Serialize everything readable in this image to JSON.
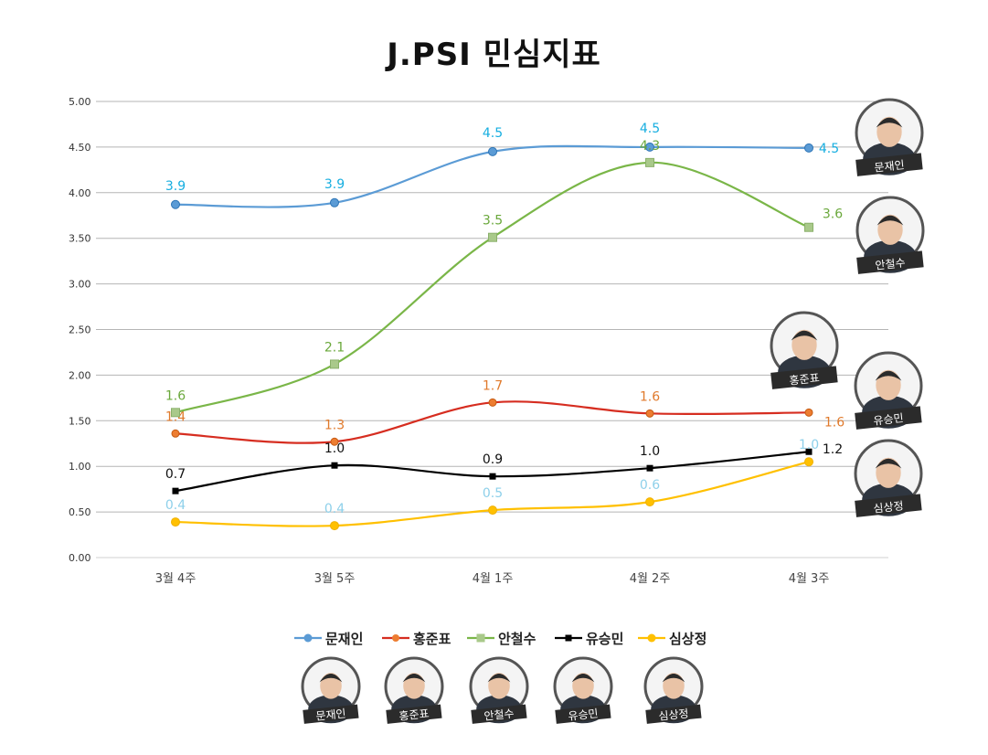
{
  "chart_data": {
    "type": "line",
    "title": "J.PSI 민심지표",
    "categories": [
      "3월 4주",
      "3월 5주",
      "4월 1주",
      "4월 2주",
      "4월 3주"
    ],
    "ylim": [
      0,
      5
    ],
    "yticks": [
      "0.00",
      "0.50",
      "1.00",
      "1.50",
      "2.00",
      "2.50",
      "3.00",
      "3.50",
      "4.00",
      "4.50",
      "5.00"
    ],
    "grid": true,
    "legend": "bottom",
    "series": [
      {
        "name": "문재인",
        "color": "#5b9bd5",
        "marker": "circle",
        "label_color": "#16aee0",
        "values": [
          3.87,
          3.89,
          4.45,
          4.5,
          4.49
        ],
        "labels": [
          "3.9",
          "3.9",
          "4.5",
          "4.5",
          "4.5"
        ]
      },
      {
        "name": "홍준표",
        "color": "#d62d20",
        "marker": "circle-orange",
        "label_color": "#e07a2c",
        "values": [
          1.36,
          1.27,
          1.7,
          1.58,
          1.59
        ],
        "labels": [
          "1.4",
          "1.3",
          "1.7",
          "1.6",
          "1.6"
        ]
      },
      {
        "name": "안철수",
        "color": "#7ab648",
        "marker": "square",
        "label_color": "#6aa83b",
        "values": [
          1.59,
          2.12,
          3.51,
          4.33,
          3.62
        ],
        "labels": [
          "1.6",
          "2.1",
          "3.5",
          "4.3",
          "3.6"
        ]
      },
      {
        "name": "유승민",
        "color": "#000000",
        "marker": "square-black",
        "label_color": "#111111",
        "values": [
          0.73,
          1.01,
          0.89,
          0.98,
          1.16
        ],
        "labels": [
          "0.7",
          "1.0",
          "0.9",
          "1.0",
          "1.2"
        ]
      },
      {
        "name": "심상정",
        "color": "#ffc000",
        "marker": "circle",
        "label_color": "#8ed0ea",
        "values": [
          0.39,
          0.35,
          0.52,
          0.61,
          1.05
        ],
        "labels": [
          "0.4",
          "0.4",
          "0.5",
          "0.6",
          "1.0"
        ]
      }
    ]
  },
  "portraits": {
    "right": [
      "문재인",
      "안철수",
      "홍준표",
      "유승민",
      "심상정"
    ],
    "bottom": [
      "문재인",
      "홍준표",
      "안철수",
      "유승민",
      "심상정"
    ]
  }
}
